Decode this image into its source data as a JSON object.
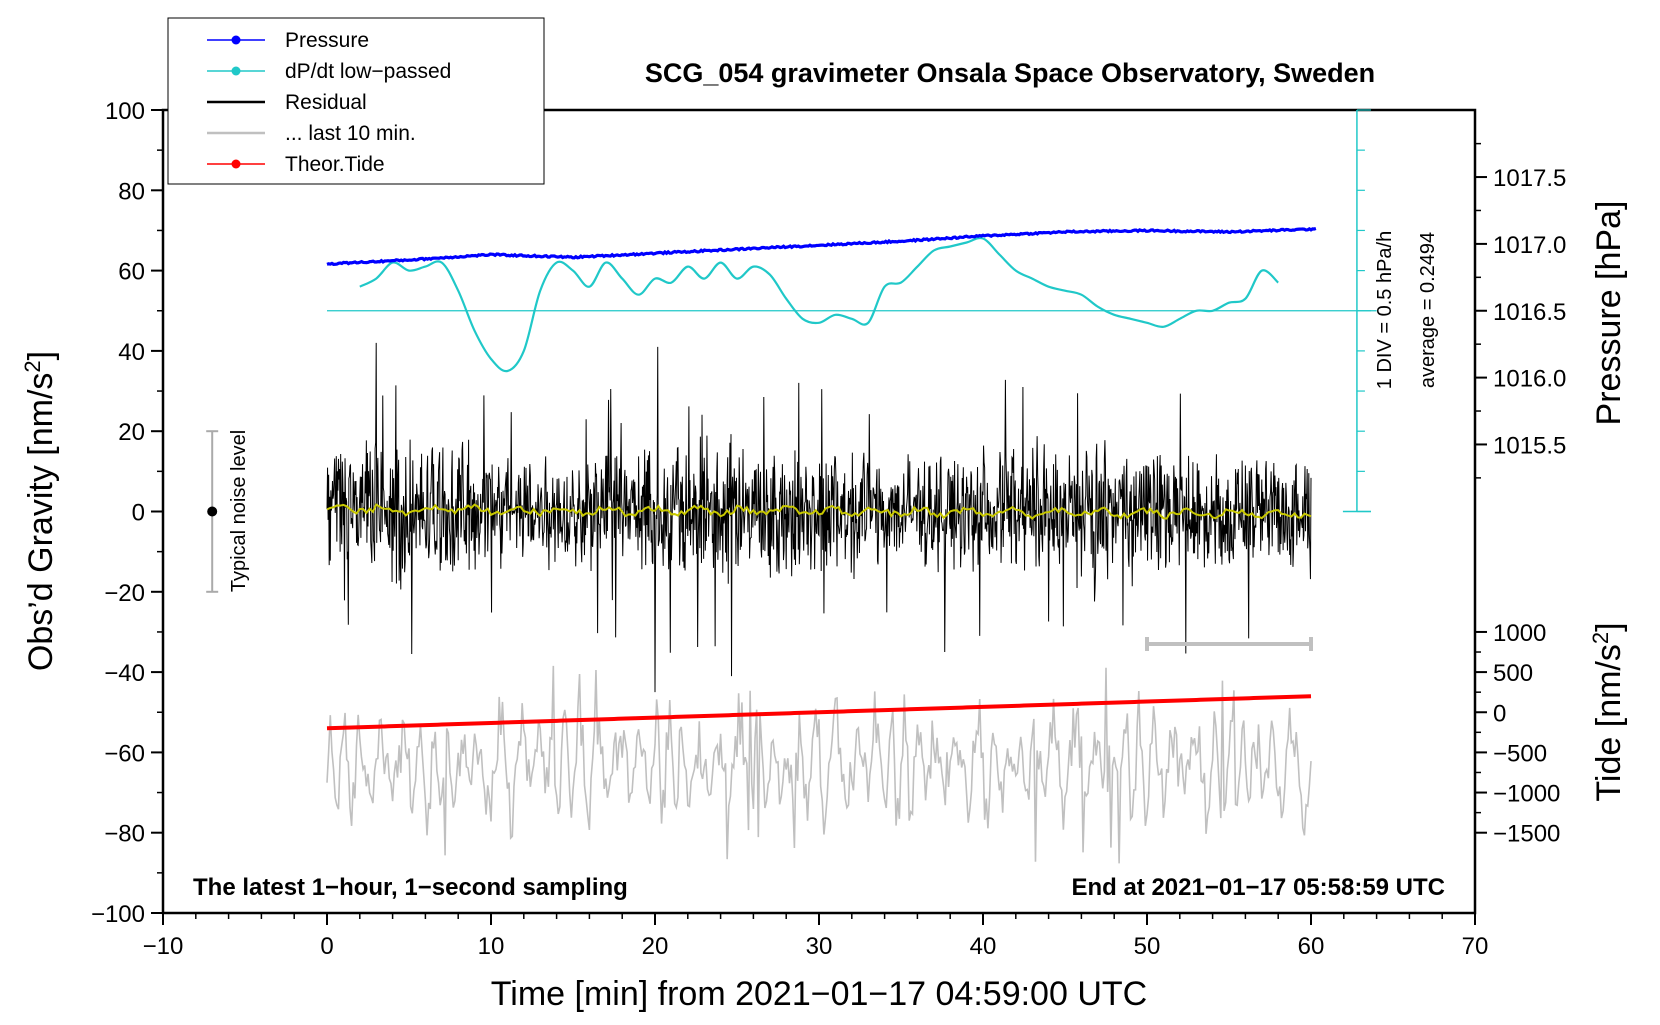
{
  "chart_data": {
    "type": "line",
    "title": "SCG_054 gravimeter Onsala Space Observatory, Sweden",
    "xlabel": "Time [min] from 2021−01−17 04:59:00 UTC",
    "xlim": [
      -10,
      70
    ],
    "xticks": [
      -10,
      0,
      10,
      20,
      30,
      40,
      50,
      60,
      70
    ],
    "x_tick_labels": [
      "−10",
      "0",
      "10",
      "20",
      "30",
      "40",
      "50",
      "60",
      "70"
    ],
    "left_axis": {
      "label": "Obs’d Gravity [nm/s",
      "label_sup": "2",
      "label_end": "]",
      "ylim": [
        -100,
        100
      ],
      "ticks": [
        -100,
        -80,
        -60,
        -40,
        -20,
        0,
        20,
        40,
        60,
        80,
        100
      ],
      "tick_labels": [
        "−100",
        "−80",
        "−60",
        "−40",
        "−20",
        "0",
        "20",
        "40",
        "60",
        "80",
        "100"
      ]
    },
    "pressure_axis": {
      "label": "Pressure [hPa]",
      "ticks": [
        1015.5,
        1016.0,
        1016.5,
        1017.0,
        1017.5
      ],
      "tick_labels": [
        "1015.5",
        "1016.0",
        "1016.5",
        "1017.0",
        "1017.5"
      ],
      "gravity_equivalent": {
        "at_1016_5": 50,
        "per_hPa": 33.3
      }
    },
    "tide_axis": {
      "label": "Tide [nm/s",
      "label_sup": "2",
      "label_end": "]",
      "ticks": [
        -1500,
        -1000,
        -500,
        0,
        500,
        1000
      ],
      "tick_labels": [
        "−1500",
        "−1000",
        "−500",
        "0",
        "500",
        "1000"
      ],
      "gravity_equivalent": {
        "at_0": -50,
        "per_nms2": 0.02
      }
    },
    "series": [
      {
        "name": "Pressure",
        "unit": "hPa",
        "color": "#0000ff",
        "x": [
          0,
          5,
          10,
          15,
          20,
          25,
          30,
          35,
          40,
          45,
          50,
          55,
          60
        ],
        "values": [
          1016.85,
          1016.88,
          1016.92,
          1016.9,
          1016.93,
          1016.96,
          1016.99,
          1017.02,
          1017.06,
          1017.09,
          1017.1,
          1017.09,
          1017.11
        ]
      },
      {
        "name": "dP/dt low−passed",
        "unit": "nm/s2 equivalent",
        "color": "#20c8c8",
        "x": [
          2,
          3,
          4,
          5,
          6,
          7,
          8,
          9,
          10,
          11,
          12,
          13,
          14,
          15,
          16,
          17,
          18,
          19,
          20,
          21,
          22,
          23,
          24,
          25,
          26,
          27,
          28,
          29,
          30,
          31,
          32,
          33,
          34,
          35,
          36,
          37,
          38,
          39,
          40,
          41,
          42,
          43,
          44,
          45,
          46,
          47,
          48,
          49,
          50,
          51,
          52,
          53,
          54,
          55,
          56,
          57,
          58
        ],
        "values": [
          56,
          58,
          62,
          60,
          61,
          62,
          55,
          45,
          38,
          35,
          40,
          55,
          62,
          60,
          56,
          62,
          58,
          54,
          58,
          57,
          61,
          58,
          62,
          58,
          61,
          59,
          53,
          48,
          47,
          49,
          48,
          47,
          56,
          57,
          61,
          65,
          66,
          67,
          68,
          64,
          60,
          58,
          56,
          55,
          54,
          51,
          49,
          48,
          47,
          46,
          48,
          50,
          50,
          52,
          53,
          60,
          57
        ]
      },
      {
        "name": "Residual",
        "color": "#000000",
        "note": "1-second samples, amplitude roughly ±20 nm/s2 with spikes to 42 and −45",
        "envelope_max": 42,
        "envelope_min": -45
      },
      {
        "name": "... last 10 min.",
        "color": "#c0c0c0",
        "x_range": [
          50,
          60
        ]
      },
      {
        "name": "Theor.Tide",
        "unit": "nm/s2",
        "color": "#ff0000",
        "x": [
          0,
          60
        ],
        "values": [
          -200,
          200
        ]
      }
    ],
    "dpdt_reference": {
      "label_div": "1 DIV = 0.5 hPa/h",
      "label_avg": "average = 0.2494",
      "baseline": 50
    },
    "noise_bar": {
      "label": "Typical noise level",
      "x": -7,
      "low": -20,
      "high": 20,
      "center": 0
    },
    "annotations": {
      "left": "The latest 1−hour, 1−second sampling",
      "right": "End at 2021−01−17 05:58:59 UTC"
    },
    "legend": [
      {
        "label": "Pressure",
        "color": "#0000ff",
        "marker": true
      },
      {
        "label": "dP/dt low−passed",
        "color": "#20c8c8",
        "marker": true
      },
      {
        "label": "Residual",
        "color": "#000000",
        "marker": false
      },
      {
        "label": "... last 10 min.",
        "color": "#c0c0c0",
        "marker": false
      },
      {
        "label": "Theor.Tide",
        "color": "#ff0000",
        "marker": true
      }
    ]
  }
}
